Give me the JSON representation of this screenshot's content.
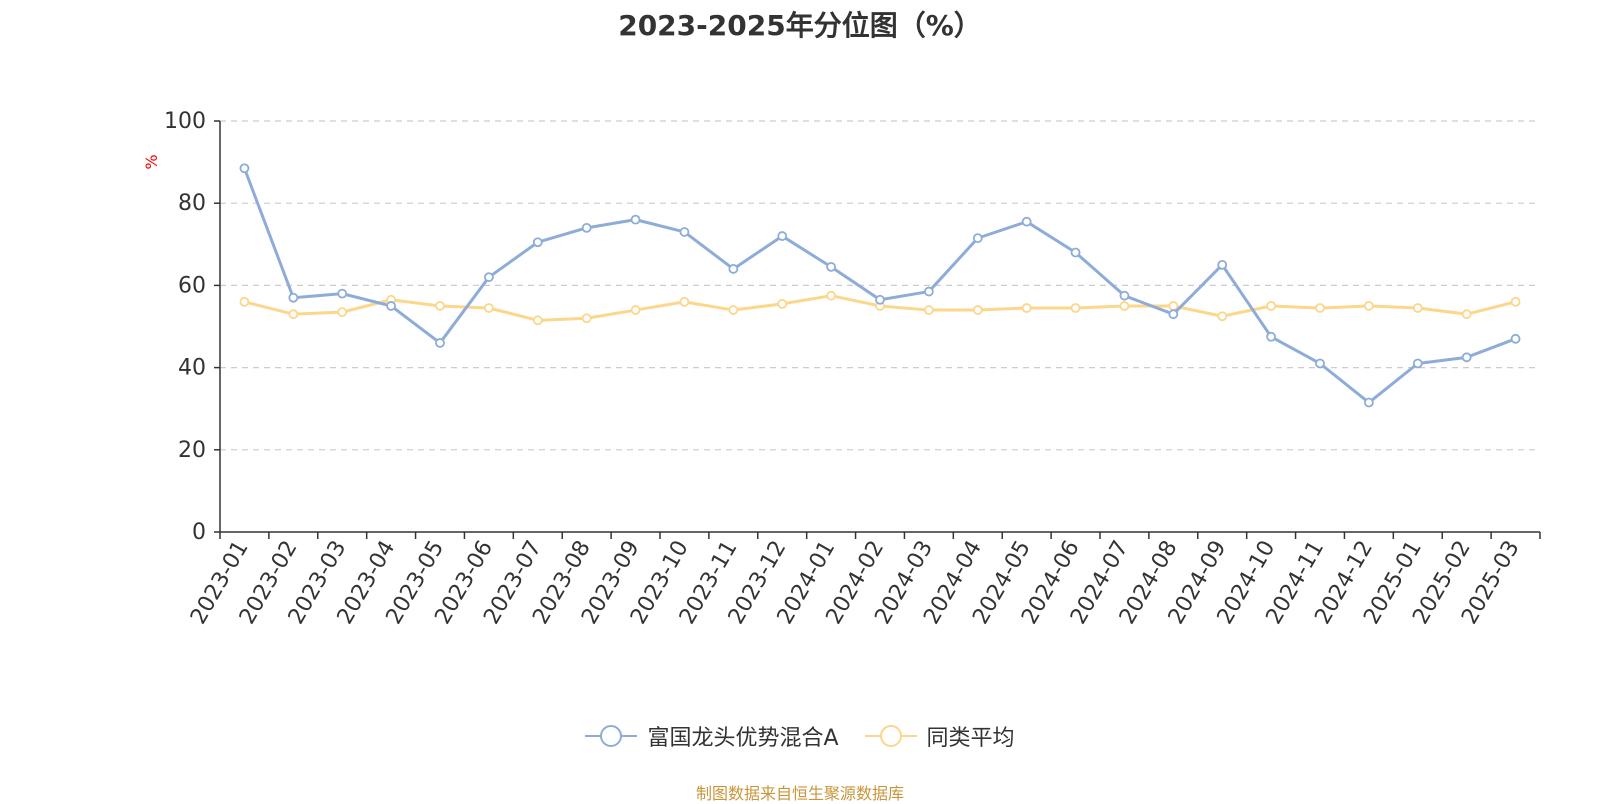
{
  "chart_data": {
    "type": "line",
    "title": "2023-2025年分位图（%）",
    "ylabel": "%",
    "ylim": [
      0,
      100
    ],
    "yticks": [
      0,
      20,
      40,
      60,
      80,
      100
    ],
    "grid": true,
    "legend_position": "bottom",
    "categories": [
      "2023-01",
      "2023-02",
      "2023-03",
      "2023-04",
      "2023-05",
      "2023-06",
      "2023-07",
      "2023-08",
      "2023-09",
      "2023-10",
      "2023-11",
      "2023-12",
      "2024-01",
      "2024-02",
      "2024-03",
      "2024-04",
      "2024-05",
      "2024-06",
      "2024-07",
      "2024-08",
      "2024-09",
      "2024-10",
      "2024-11",
      "2024-12",
      "2025-01",
      "2025-02",
      "2025-03"
    ],
    "series": [
      {
        "name": "富国龙头优势混合A",
        "color": "#8eacd8",
        "values": [
          88.5,
          57.0,
          58.0,
          55.0,
          46.0,
          62.0,
          70.5,
          74.0,
          76.0,
          73.0,
          64.0,
          72.0,
          64.5,
          56.5,
          58.5,
          71.5,
          75.5,
          68.0,
          57.5,
          53.0,
          65.0,
          47.5,
          41.0,
          31.5,
          41.0,
          42.5,
          47.0
        ]
      },
      {
        "name": "同类平均",
        "color": "#fcd68a",
        "values": [
          56.0,
          53.0,
          53.5,
          56.5,
          55.0,
          54.5,
          51.5,
          52.0,
          54.0,
          56.0,
          54.0,
          55.5,
          57.5,
          55.0,
          54.0,
          54.0,
          54.5,
          54.5,
          55.0,
          55.0,
          52.5,
          55.0,
          54.5,
          55.0,
          54.5,
          53.0,
          56.0
        ]
      }
    ],
    "colors": {
      "axis": "#333333",
      "grid": "#cccccc",
      "ylabel": "#ff0000"
    }
  },
  "source_text": "制图数据来自恒生聚源数据库"
}
